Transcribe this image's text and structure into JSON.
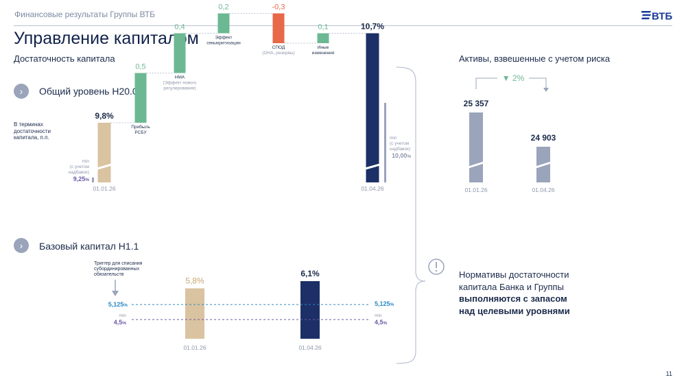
{
  "header": {
    "subtitle": "Финансовые результаты Группы ВТБ",
    "logo_text": "ВТБ"
  },
  "page_title": "Управление капиталом",
  "left_section_title": "Достаточность капитала",
  "right_section_title": "Активы, взвешенные с учетом риска",
  "page_number": "11",
  "colors": {
    "navy": "#1c2f66",
    "tan": "#d9c3a0",
    "green": "#6cb893",
    "red": "#e8684a",
    "grey_blue": "#9aa4ba"
  },
  "n20": {
    "title": "Общий уровень Н20.0",
    "side_note": [
      "В терминах",
      "достаточности",
      "капитала, п.п."
    ],
    "min_start_label": [
      "min",
      "(с учетом",
      "надбавок)"
    ],
    "min_start_value": "9,25",
    "min_end_label": [
      "min",
      "(с учетом",
      "надбавок)"
    ],
    "min_end_value": "10,00",
    "pct_sign": "%"
  },
  "n11": {
    "title": "Базовый капитал Н1.1",
    "trigger_note": [
      "Триггер для списания",
      "субординированных",
      "обязательств"
    ],
    "trigger_value": "5,125",
    "min_label": "min",
    "min_value": "4,5",
    "pct_sign": "%"
  },
  "note": {
    "line1": "Нормативы достаточности",
    "line2": "капитала Банка и Группы",
    "line3": "выполняются с запасом",
    "line4": "над целевыми уровнями"
  },
  "chart_data": [
    {
      "type": "bar",
      "subtype": "waterfall",
      "title": "Общий уровень Н20.0",
      "ylabel": "В терминах достаточности капитала, п.п.",
      "categories": [
        "01.01.26",
        "Прибыль РСБУ",
        "НМА (Эффект нового регулирования)",
        "Эффект секьюритизации",
        "СПОД (ОНА, резервы)",
        "Иные изменения",
        "01.04.26"
      ],
      "values": [
        9.8,
        0.5,
        0.4,
        0.2,
        -0.3,
        0.1,
        10.7
      ],
      "labels": [
        "9,8%",
        "0,5",
        "0,4",
        "0,2",
        "-0,3",
        "0,1",
        "10,7%"
      ],
      "category_labels": [
        [
          "01.01.26"
        ],
        [
          "Прибыль",
          "РСБУ"
        ],
        [
          "НМА",
          "(Эффект нового",
          "регулирования)"
        ],
        [
          "Эффект",
          "секьюритизации"
        ],
        [
          "СПОД",
          "(ОНА, резервы)"
        ],
        [
          "Иные",
          "изменения"
        ],
        [
          "01.04.26"
        ]
      ],
      "min_requirement": [
        9.25,
        10.0
      ]
    },
    {
      "type": "bar",
      "title": "Базовый капитал Н1.1",
      "categories": [
        "01.01.26",
        "01.04.26"
      ],
      "values": [
        5.8,
        6.1
      ],
      "labels": [
        "5,8%",
        "6,1%"
      ],
      "reference_lines": [
        {
          "value": 5.125,
          "label": "5,125%"
        },
        {
          "value": 4.5,
          "label": "min 4,5%"
        }
      ]
    },
    {
      "type": "bar",
      "title": "Активы, взвешенные с учетом риска",
      "categories": [
        "01.01.26",
        "01.04.26"
      ],
      "values": [
        25357,
        24903
      ],
      "labels": [
        "25 357",
        "24 903"
      ],
      "change_label": "▼ 2%"
    }
  ]
}
